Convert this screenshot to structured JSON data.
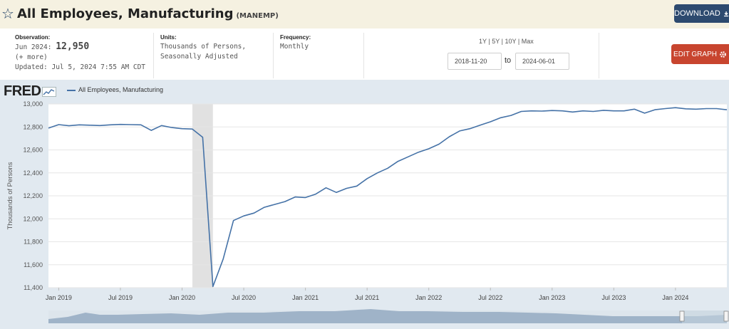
{
  "header": {
    "title": "All Employees, Manufacturing",
    "series_id": "(MANEMP)",
    "download_label": "DOWNLOAD"
  },
  "info": {
    "observation_label": "Observation:",
    "observation_date": "Jun 2024:",
    "observation_value": "12,950",
    "more": "(+ more)",
    "updated": "Updated: Jul 5, 2024 7:55 AM CDT",
    "units_label": "Units:",
    "units_line1": "Thousands of Persons,",
    "units_line2": "Seasonally Adjusted",
    "frequency_label": "Frequency:",
    "frequency_value": "Monthly"
  },
  "controls": {
    "range_1y": "1Y",
    "range_5y": "5Y",
    "range_10y": "10Y",
    "range_max": "Max",
    "divider": "|",
    "start_date": "2018-11-20",
    "to_label": "to",
    "end_date": "2024-06-01",
    "edit_label": "EDIT GRAPH"
  },
  "chart_panel": {
    "logo": "FRED",
    "legend_label": "All Employees, Manufacturing",
    "line_color": "#4572a7",
    "recession_color": "#e1e1e1"
  },
  "chart_data": {
    "type": "line",
    "title": "",
    "ylabel": "Thousands of Persons",
    "xlabel": "",
    "ylim": [
      11400,
      13000
    ],
    "yticks": [
      11400,
      11600,
      11800,
      12000,
      12200,
      12400,
      12600,
      12800,
      13000
    ],
    "ytick_labels": [
      "11,400",
      "11,600",
      "11,800",
      "12,000",
      "12,200",
      "12,400",
      "12,600",
      "12,800",
      "13,000"
    ],
    "xticks": [
      {
        "label": "Jan 2019",
        "date": "2019-01"
      },
      {
        "label": "Jul 2019",
        "date": "2019-07"
      },
      {
        "label": "Jan 2020",
        "date": "2020-01"
      },
      {
        "label": "Jul 2020",
        "date": "2020-07"
      },
      {
        "label": "Jan 2021",
        "date": "2021-01"
      },
      {
        "label": "Jul 2021",
        "date": "2021-07"
      },
      {
        "label": "Jan 2022",
        "date": "2022-01"
      },
      {
        "label": "Jul 2022",
        "date": "2022-07"
      },
      {
        "label": "Jan 2023",
        "date": "2023-01"
      },
      {
        "label": "Jul 2023",
        "date": "2023-07"
      },
      {
        "label": "Jan 2024",
        "date": "2024-01"
      }
    ],
    "recession": [
      "2020-02",
      "2020-04"
    ],
    "grid": true,
    "series": [
      {
        "name": "All Employees, Manufacturing",
        "x": [
          "2018-12",
          "2019-01",
          "2019-02",
          "2019-03",
          "2019-04",
          "2019-05",
          "2019-06",
          "2019-07",
          "2019-08",
          "2019-09",
          "2019-10",
          "2019-11",
          "2019-12",
          "2020-01",
          "2020-02",
          "2020-03",
          "2020-04",
          "2020-05",
          "2020-06",
          "2020-07",
          "2020-08",
          "2020-09",
          "2020-10",
          "2020-11",
          "2020-12",
          "2021-01",
          "2021-02",
          "2021-03",
          "2021-04",
          "2021-05",
          "2021-06",
          "2021-07",
          "2021-08",
          "2021-09",
          "2021-10",
          "2021-11",
          "2021-12",
          "2022-01",
          "2022-02",
          "2022-03",
          "2022-04",
          "2022-05",
          "2022-06",
          "2022-07",
          "2022-08",
          "2022-09",
          "2022-10",
          "2022-11",
          "2022-12",
          "2023-01",
          "2023-02",
          "2023-03",
          "2023-04",
          "2023-05",
          "2023-06",
          "2023-07",
          "2023-08",
          "2023-09",
          "2023-10",
          "2023-11",
          "2023-12",
          "2024-01",
          "2024-02",
          "2024-03",
          "2024-04",
          "2024-05",
          "2024-06"
        ],
        "values": [
          12790,
          12820,
          12810,
          12818,
          12815,
          12812,
          12818,
          12822,
          12820,
          12818,
          12770,
          12812,
          12795,
          12785,
          12782,
          12710,
          11410,
          11650,
          11985,
          12025,
          12050,
          12100,
          12125,
          12150,
          12190,
          12185,
          12215,
          12270,
          12230,
          12265,
          12285,
          12350,
          12400,
          12440,
          12500,
          12540,
          12580,
          12610,
          12650,
          12715,
          12765,
          12785,
          12815,
          12845,
          12880,
          12900,
          12935,
          12940,
          12938,
          12943,
          12940,
          12930,
          12940,
          12935,
          12945,
          12940,
          12940,
          12955,
          12920,
          12950,
          12960,
          12968,
          12958,
          12955,
          12960,
          12960,
          12950
        ]
      }
    ]
  }
}
